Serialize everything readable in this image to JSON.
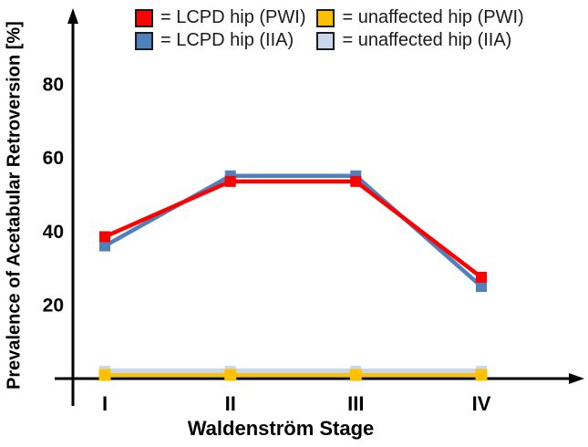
{
  "figure": {
    "legend": {
      "items": [
        {
          "label": "= LCPD hip (PWI)",
          "color": "#FE0000"
        },
        {
          "label": "= unaffected hip (PWI)",
          "color": "#FFC000"
        },
        {
          "label": "= LCPD hip (IIA)",
          "color": "#4F81BD"
        },
        {
          "label": "= unaffected hip (IIA)",
          "color": "#C9D7EC"
        }
      ]
    }
  },
  "chart_data": {
    "type": "line",
    "title": "",
    "xlabel": "Waldenström Stage",
    "ylabel": "Prevalence of Acetabular Retroversion [%]",
    "categories": [
      "I",
      "II",
      "III",
      "IV"
    ],
    "y_ticks": [
      20,
      40,
      60,
      80
    ],
    "ylim": [
      0,
      100
    ],
    "grid": false,
    "legend_position": "top",
    "axis_color": "#000000",
    "marker": "square",
    "series": [
      {
        "name": "unaffected hip (IIA)",
        "color": "#C9D7EC",
        "values": [
          2,
          2,
          2,
          2
        ]
      },
      {
        "name": "unaffected hip (PWI)",
        "color": "#FFC000",
        "values": [
          1,
          1,
          1,
          1
        ]
      },
      {
        "name": "LCPD hip (IIA)",
        "color": "#4F81BD",
        "values": [
          36,
          55,
          55,
          25
        ]
      },
      {
        "name": "LCPD hip (PWI)",
        "color": "#FE0000",
        "values": [
          38.5,
          53.5,
          53.5,
          27.5
        ]
      }
    ]
  }
}
